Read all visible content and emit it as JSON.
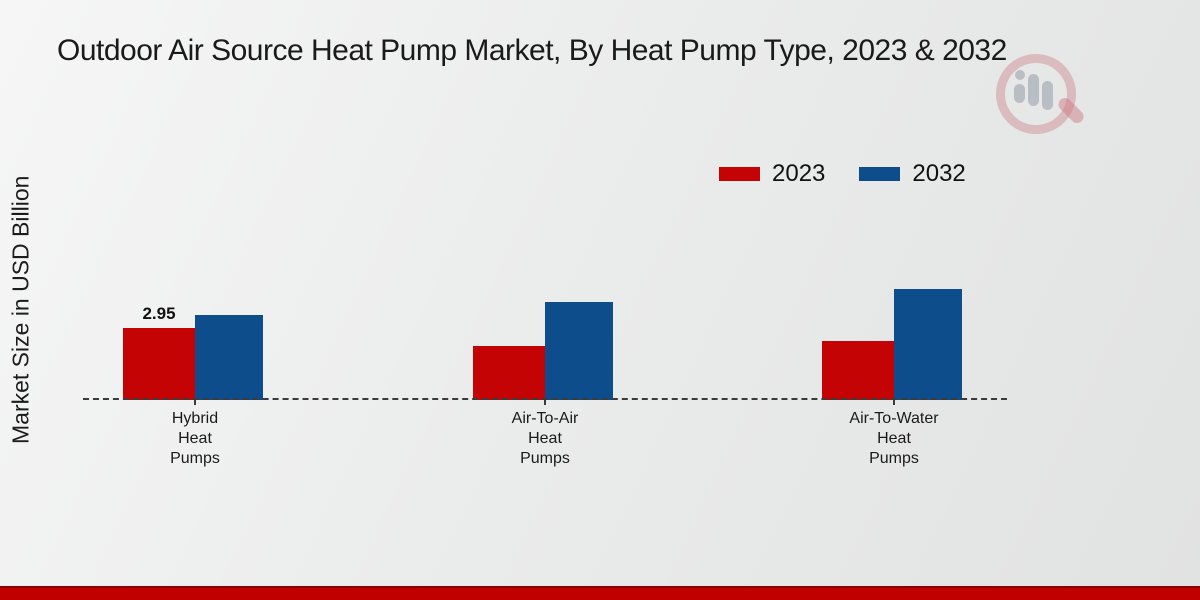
{
  "title": "Outdoor Air Source Heat Pump Market, By Heat Pump Type, 2023 & 2032",
  "y_axis_label": "Market Size in USD Billion",
  "legend": {
    "items": [
      {
        "label": "2023",
        "color": "#c40404"
      },
      {
        "label": "2032",
        "color": "#0e4d8b"
      }
    ]
  },
  "watermark_icon": "magnifier-bar-chart-logo",
  "footer": {
    "bar_color": "#c00000"
  },
  "colors": {
    "series_2023": "#c40404",
    "series_2032": "#0e4d8b",
    "baseline": "#3b3b3b",
    "background": "#ebecec",
    "footer_bar": "#c00000"
  },
  "chart_data": {
    "type": "bar",
    "title": "Outdoor Air Source Heat Pump Market, By Heat Pump Type, 2023 & 2032",
    "xlabel": "",
    "ylabel": "Market Size in USD Billion",
    "categories": [
      "Hybrid Heat Pumps",
      "Air-To-Air Heat Pumps",
      "Air-To-Water Heat Pumps"
    ],
    "series": [
      {
        "name": "2023",
        "color": "#c40404",
        "values": [
          2.95,
          2.2,
          2.4
        ]
      },
      {
        "name": "2032",
        "color": "#0e4d8b",
        "values": [
          3.5,
          4.0,
          4.55
        ]
      }
    ],
    "data_labels": [
      {
        "series_index": 0,
        "category_index": 0,
        "text": "2.95"
      }
    ],
    "ylim": [
      0,
      5
    ],
    "grid": false,
    "legend_position": "top-right",
    "baseline_style": "dashed",
    "y_axis_ticks_visible": false
  }
}
